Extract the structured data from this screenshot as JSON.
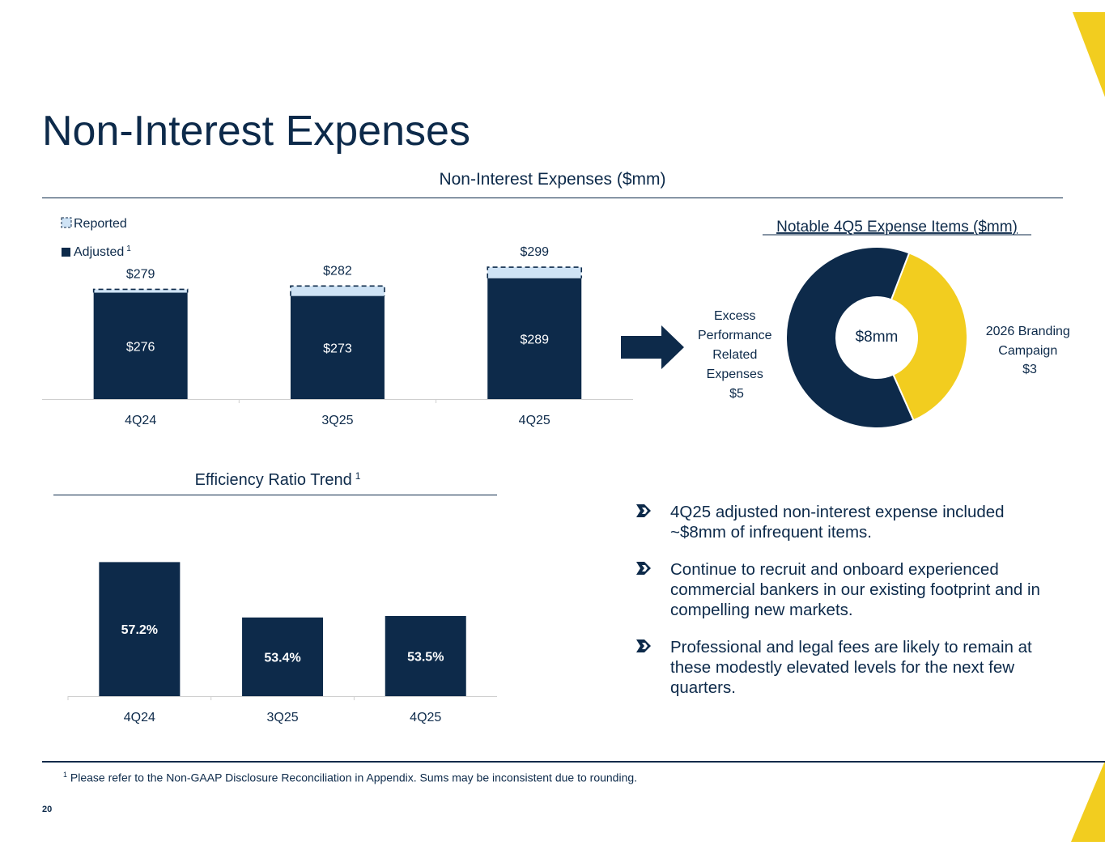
{
  "slide": {
    "title": "Non-Interest Expenses",
    "section_title": "Non-Interest Expenses ($mm)",
    "footnote_marker": "1",
    "footnote": "Please refer to the Non-GAAP Disclosure Reconciliation in Appendix. Sums may be inconsistent due to rounding.",
    "page_number": "20"
  },
  "colors": {
    "navy": "#0d2a4a",
    "light_blue": "#cfe3f5",
    "yellow": "#f2cd1f",
    "axis_gray": "#cfcfcf"
  },
  "bullets": [
    {
      "text": "4Q25 adjusted non-interest expense included ~$8mm of infrequent items."
    },
    {
      "text": "Continue to recruit and onboard experienced commercial bankers in our existing footprint and in compelling new markets."
    },
    {
      "text": "Professional and legal fees are likely to remain at these modestly elevated levels for the next few quarters."
    }
  ],
  "chart_data": [
    {
      "id": "non-interest-expenses",
      "type": "bar",
      "title": "Non-Interest Expenses ($mm)",
      "categories": [
        "4Q24",
        "3Q25",
        "4Q25"
      ],
      "series": [
        {
          "name": "Reported",
          "values": [
            279,
            282,
            299
          ],
          "labels": [
            "$279",
            "$282",
            "$299"
          ],
          "style": "dashed-outline"
        },
        {
          "name": "Adjusted",
          "values": [
            276,
            273,
            289
          ],
          "labels": [
            "$276",
            "$273",
            "$289"
          ]
        }
      ],
      "legend": [
        "Reported",
        "Adjusted"
      ],
      "legend_adjusted_footnote": "1",
      "legend_position": "top-left",
      "ylim": [
        180,
        310
      ]
    },
    {
      "id": "notable-expense-items",
      "type": "pie",
      "title": "Notable 4Q5 Expense Items ($mm)",
      "center_label": "$8mm",
      "slices": [
        {
          "label": "Excess Performance Related Expenses",
          "value": 5,
          "value_label": "$5"
        },
        {
          "label": "2026 Branding Campaign",
          "value": 3,
          "value_label": "$3"
        }
      ]
    },
    {
      "id": "efficiency-ratio-trend",
      "type": "bar",
      "title": "Efficiency Ratio Trend",
      "title_footnote": "1",
      "categories": [
        "4Q24",
        "3Q25",
        "4Q25"
      ],
      "values": [
        57.2,
        53.4,
        53.5
      ],
      "labels": [
        "57.2%",
        "53.4%",
        "53.5%"
      ],
      "ylim": [
        48,
        58
      ]
    }
  ]
}
